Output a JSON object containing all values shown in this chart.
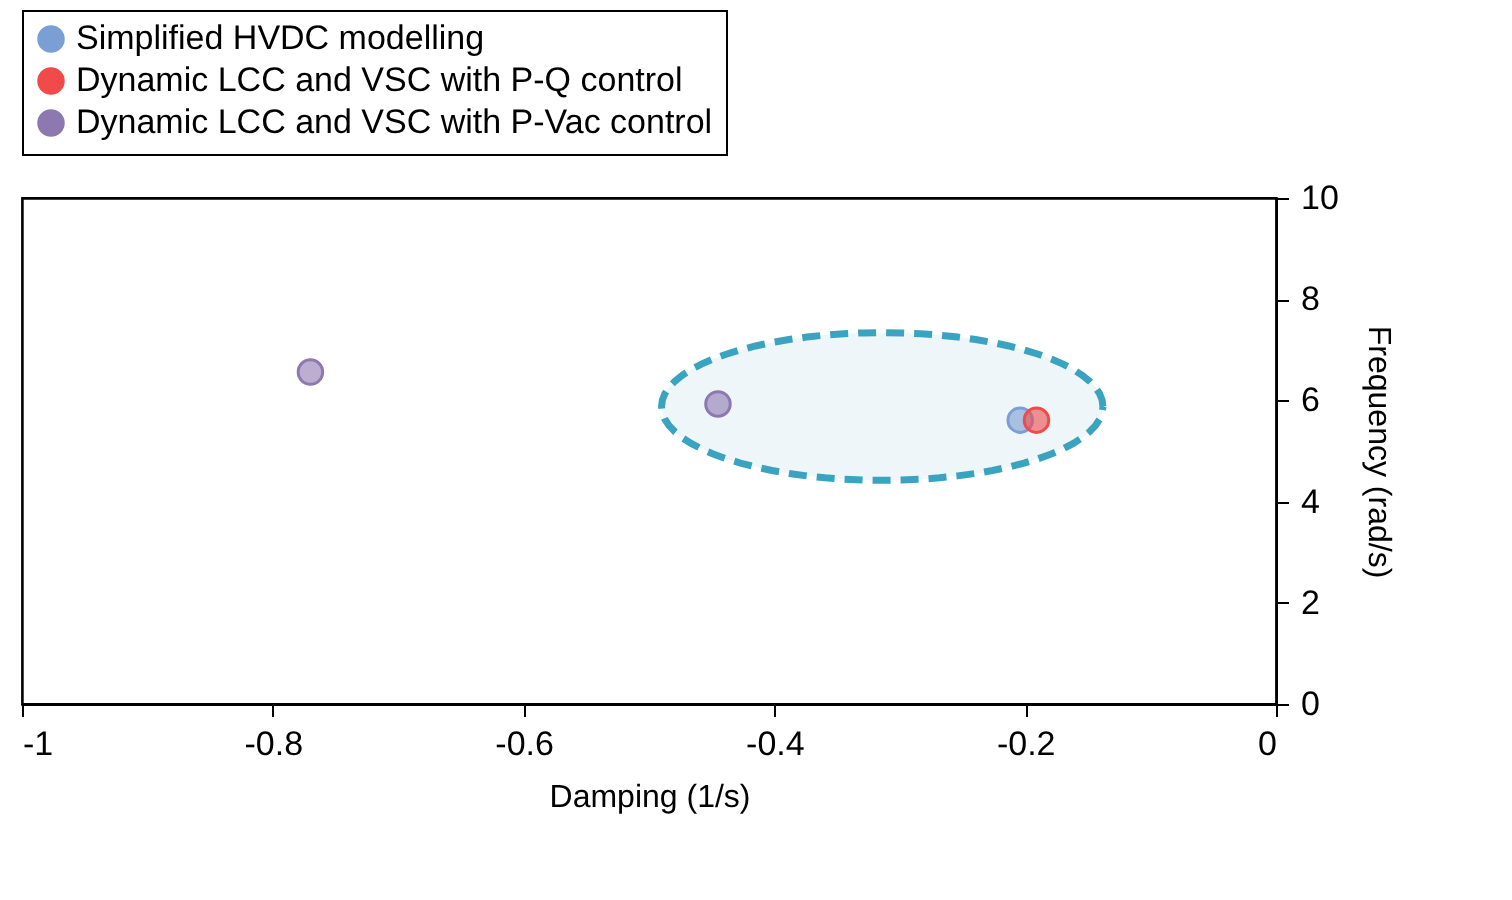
{
  "chart_data": {
    "type": "scatter",
    "xlabel": "Damping (1/s)",
    "ylabel": "Frequency (rad/s)",
    "xlim": [
      -1,
      0
    ],
    "xticks": [
      -1,
      -0.8,
      -0.6,
      -0.4,
      -0.2,
      0
    ],
    "ylim": [
      0,
      10
    ],
    "yticks": [
      0,
      2,
      4,
      6,
      8,
      10
    ],
    "grid": false,
    "legend": "top",
    "marker": "circle",
    "series": [
      {
        "name": "Simplified HVDC modelling",
        "color": "#7a9fd4",
        "x": [
          null,
          -0.204
        ],
        "values": [
          null,
          5.61
        ]
      },
      {
        "name": "Dynamic LCC and VSC with P-Q control",
        "color": "#f04a4a",
        "x": [
          null,
          -0.191
        ],
        "values": [
          null,
          5.61
        ]
      },
      {
        "name": "Dynamic LCC and VSC with P-Vac control",
        "color": "#8e78b0",
        "x": [
          -0.77,
          -0.445
        ],
        "values": [
          6.56,
          5.93
        ]
      }
    ]
  }
}
